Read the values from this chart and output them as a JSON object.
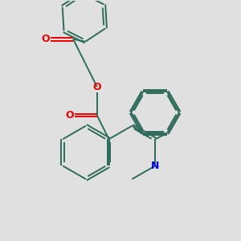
{
  "background_color": "#e0e0e0",
  "bond_color": "#2d6b5a",
  "atom_colors": {
    "N": "#0000ee",
    "O": "#ee0000"
  },
  "lw": 1.4,
  "dbo": 0.055,
  "figsize": [
    3.0,
    3.0
  ],
  "dpi": 100
}
